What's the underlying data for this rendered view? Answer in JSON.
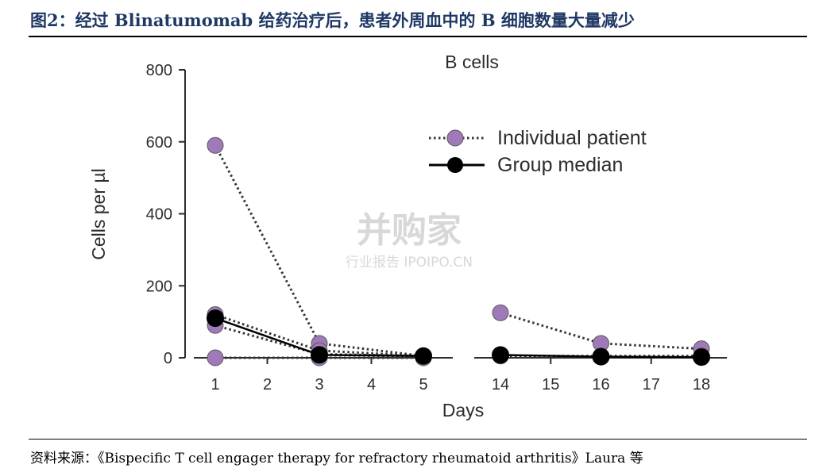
{
  "figure": {
    "title": "图2：经过 Blinatumomab 给药治疗后，患者外周血中的 B 细胞数量大量减少",
    "source": "资料来源：《Bispecific T cell engager therapy for refractory rheumatoid arthritis》Laura 等"
  },
  "watermark": {
    "main": "并购家",
    "sub": "行业报告 IPOIPO.CN"
  },
  "colors": {
    "individual": "#a07ab8",
    "median": "#000000",
    "title": "#1f3864"
  },
  "chart_data": {
    "type": "line",
    "title": "B cells",
    "xlabel": "Days",
    "ylabel": "Cells per µl",
    "ylim": [
      0,
      800
    ],
    "yticks": [
      0,
      200,
      400,
      600,
      800
    ],
    "xticks_left": [
      1,
      2,
      3,
      4,
      5
    ],
    "xticks_right": [
      14,
      15,
      16,
      17,
      18
    ],
    "axis_break": "between day 5 and day 14",
    "grid": false,
    "legend_position": "top-right",
    "legend": [
      {
        "label": "Individual patient",
        "style": "dotted line, purple circle markers"
      },
      {
        "label": "Group median",
        "style": "solid line, black circle markers"
      }
    ],
    "series": [
      {
        "name": "Individual patient",
        "kind": "individual",
        "x": [
          1,
          3,
          5
        ],
        "y": [
          590,
          40,
          5
        ]
      },
      {
        "name": "Individual patient",
        "kind": "individual",
        "x": [
          1,
          3,
          5
        ],
        "y": [
          120,
          20,
          5
        ]
      },
      {
        "name": "Individual patient",
        "kind": "individual",
        "x": [
          1,
          3,
          5
        ],
        "y": [
          90,
          10,
          5
        ]
      },
      {
        "name": "Individual patient",
        "kind": "individual",
        "x": [
          1,
          3,
          5
        ],
        "y": [
          0,
          0,
          0
        ]
      },
      {
        "name": "Individual patient",
        "kind": "individual",
        "x": [
          14,
          16,
          18
        ],
        "y": [
          125,
          40,
          25
        ]
      },
      {
        "name": "Individual patient",
        "kind": "individual",
        "x": [
          14,
          16,
          18
        ],
        "y": [
          5,
          5,
          5
        ]
      },
      {
        "name": "Group median",
        "kind": "median",
        "x": [
          1,
          3,
          5
        ],
        "y": [
          110,
          8,
          5
        ]
      },
      {
        "name": "Group median",
        "kind": "median",
        "x": [
          14,
          16,
          18
        ],
        "y": [
          8,
          3,
          2
        ]
      }
    ]
  }
}
